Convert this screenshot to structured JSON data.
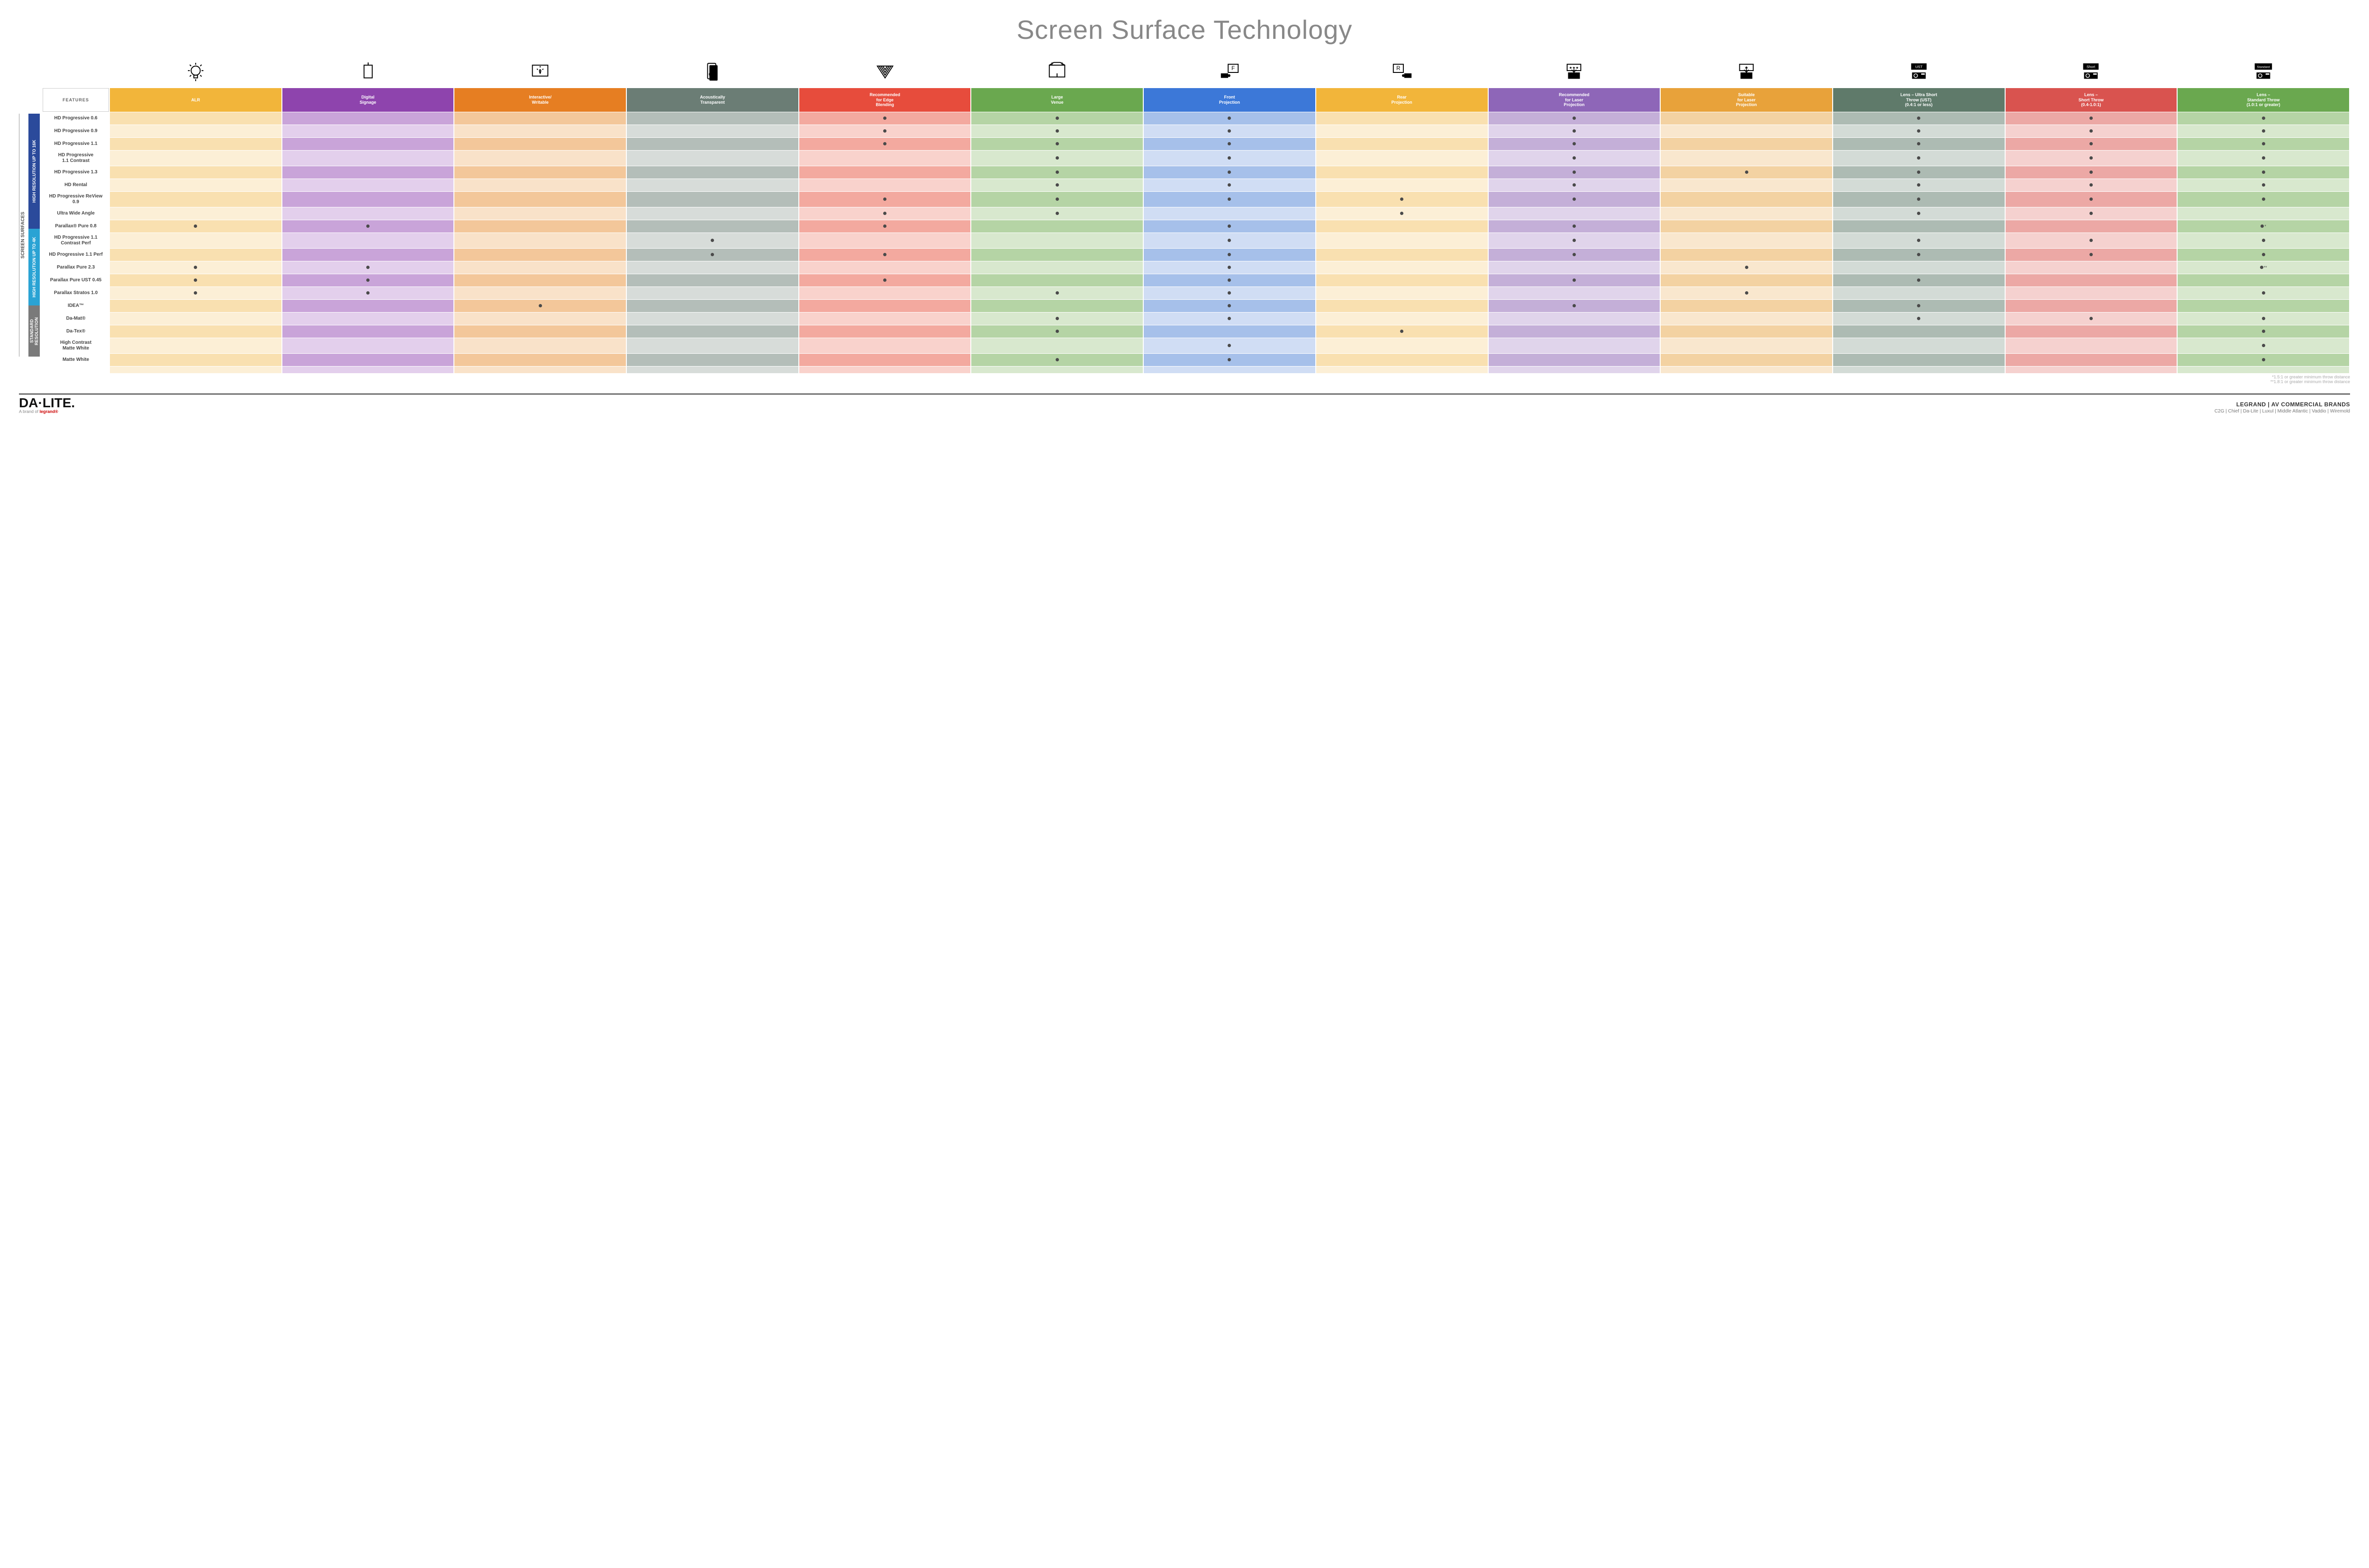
{
  "title": "Screen Surface Technology",
  "sideLabel": "SCREEN SURFACES",
  "featuresHeader": "FEATURES",
  "columns": [
    {
      "label": "ALR",
      "color": "#f2b53a",
      "light": "#f9e0b0",
      "lighter": "#fcefd6"
    },
    {
      "label": "Digital\nSignage",
      "color": "#8e44ad",
      "light": "#c9a4d9",
      "lighter": "#e3cfec"
    },
    {
      "label": "Interactive/\nWritable",
      "color": "#e67e22",
      "light": "#f3c79a",
      "lighter": "#f9e2c9"
    },
    {
      "label": "Acoustically\nTransparent",
      "color": "#6b7d75",
      "light": "#b4beb9",
      "lighter": "#d7dcd9"
    },
    {
      "label": "Recommended\nfor Edge\nBlending",
      "color": "#e74c3c",
      "light": "#f3a99f",
      "lighter": "#f9d2cc"
    },
    {
      "label": "Large\nVenue",
      "color": "#6aa84f",
      "light": "#b5d4a5",
      "lighter": "#d8e8ce"
    },
    {
      "label": "Front\nProjection",
      "color": "#3c78d8",
      "light": "#a6c0ea",
      "lighter": "#d0ddf4"
    },
    {
      "label": "Rear\nProjection",
      "color": "#f2b53a",
      "light": "#f9e0b0",
      "lighter": "#fcefd6"
    },
    {
      "label": "Recommended\nfor Laser\nProjection",
      "color": "#8e66b8",
      "light": "#c4afd8",
      "lighter": "#e0d4eb"
    },
    {
      "label": "Suitable\nfor Laser\nProjection",
      "color": "#e8a23a",
      "light": "#f3d2a2",
      "lighter": "#f9e7ce"
    },
    {
      "label": "Lens – Ultra Short\nThrow (UST)\n(0.4:1 or less)",
      "color": "#5f7a6a",
      "light": "#adbbb3",
      "lighter": "#d3dbd6"
    },
    {
      "label": "Lens –\nShort Throw\n(0.4-1.0:1)",
      "color": "#d9534f",
      "light": "#eca8a5",
      "lighter": "#f5d1cf"
    },
    {
      "label": "Lens –\nStandard Throw\n(1.0:1 or greater)",
      "color": "#6aa84f",
      "light": "#b5d4a5",
      "lighter": "#d8e8ce"
    }
  ],
  "groups": [
    {
      "label": "HIGH RESOLUTION UP TO 16K",
      "color": "#2b4a9b",
      "rowCount": 9
    },
    {
      "label": "HIGH RESOLUTION UP TO 4K",
      "color": "#2aa3d4",
      "rowCount": 6
    },
    {
      "label": "STANDARD\nRESOLUTION",
      "color": "#7a7a7a",
      "rowCount": 4
    }
  ],
  "rows": [
    {
      "label": "HD Progressive 0.6",
      "dots": [
        0,
        0,
        0,
        0,
        1,
        1,
        1,
        0,
        1,
        0,
        1,
        1,
        1
      ]
    },
    {
      "label": "HD Progressive 0.9",
      "dots": [
        0,
        0,
        0,
        0,
        1,
        1,
        1,
        0,
        1,
        0,
        1,
        1,
        1
      ]
    },
    {
      "label": "HD Progressive 1.1",
      "dots": [
        0,
        0,
        0,
        0,
        1,
        1,
        1,
        0,
        1,
        0,
        1,
        1,
        1
      ]
    },
    {
      "label": "HD Progressive\n1.1 Contrast",
      "dots": [
        0,
        0,
        0,
        0,
        0,
        1,
        1,
        0,
        1,
        0,
        1,
        1,
        1
      ]
    },
    {
      "label": "HD Progressive 1.3",
      "dots": [
        0,
        0,
        0,
        0,
        0,
        1,
        1,
        0,
        1,
        1,
        1,
        1,
        1
      ]
    },
    {
      "label": "HD Rental",
      "dots": [
        0,
        0,
        0,
        0,
        0,
        1,
        1,
        0,
        1,
        0,
        1,
        1,
        1
      ]
    },
    {
      "label": "HD Progressive ReView 0.9",
      "dots": [
        0,
        0,
        0,
        0,
        1,
        1,
        1,
        1,
        1,
        0,
        1,
        1,
        1
      ]
    },
    {
      "label": "Ultra Wide Angle",
      "dots": [
        0,
        0,
        0,
        0,
        1,
        1,
        0,
        1,
        0,
        0,
        1,
        1,
        0
      ]
    },
    {
      "label": "Parallax® Pure 0.8",
      "dots": [
        1,
        1,
        0,
        0,
        1,
        0,
        1,
        0,
        1,
        0,
        0,
        0,
        1
      ],
      "note": "*"
    },
    {
      "label": "HD Progressive 1.1\nContrast Perf",
      "dots": [
        0,
        0,
        0,
        1,
        0,
        0,
        1,
        0,
        1,
        0,
        1,
        1,
        1
      ]
    },
    {
      "label": "HD Progressive 1.1 Perf",
      "dots": [
        0,
        0,
        0,
        1,
        1,
        0,
        1,
        0,
        1,
        0,
        1,
        1,
        1
      ]
    },
    {
      "label": "Parallax Pure 2.3",
      "dots": [
        1,
        1,
        0,
        0,
        0,
        0,
        1,
        0,
        0,
        1,
        0,
        0,
        1
      ],
      "note": "**"
    },
    {
      "label": "Parallax Pure UST 0.45",
      "dots": [
        1,
        1,
        0,
        0,
        1,
        0,
        1,
        0,
        1,
        0,
        1,
        0,
        0
      ]
    },
    {
      "label": "Parallax Stratos 1.0",
      "dots": [
        1,
        1,
        0,
        0,
        0,
        1,
        1,
        0,
        0,
        1,
        0,
        0,
        1
      ]
    },
    {
      "label": "IDEA™",
      "dots": [
        0,
        0,
        1,
        0,
        0,
        0,
        1,
        0,
        1,
        0,
        1,
        0,
        0
      ]
    },
    {
      "label": "Da-Mat®",
      "dots": [
        0,
        0,
        0,
        0,
        0,
        1,
        1,
        0,
        0,
        0,
        1,
        1,
        1
      ]
    },
    {
      "label": "Da-Tex®",
      "dots": [
        0,
        0,
        0,
        0,
        0,
        1,
        0,
        1,
        0,
        0,
        0,
        0,
        1
      ]
    },
    {
      "label": "High Contrast\nMatte White",
      "dots": [
        0,
        0,
        0,
        0,
        0,
        0,
        1,
        0,
        0,
        0,
        0,
        0,
        1
      ]
    },
    {
      "label": "Matte White",
      "dots": [
        0,
        0,
        0,
        0,
        0,
        1,
        1,
        0,
        0,
        0,
        0,
        0,
        1
      ]
    }
  ],
  "footnotes": [
    "*1.5:1 or greater minimum throw distance",
    "**1.8:1 or greater minimum throw distance"
  ],
  "footer": {
    "logoMain": "DA·LITE.",
    "logoSub": "A brand of ",
    "logoSubBrand": "legrand®",
    "brandsTitle": "LEGRAND | AV COMMERCIAL BRANDS",
    "brandsList": "C2G  |  Chief  |  Da-Lite  |  Luxul  |  Middle Atlantic  |  Vaddio  |  Wiremold"
  },
  "icons": [
    "bulb",
    "signage",
    "touch",
    "speaker",
    "angle",
    "venue",
    "front",
    "rear",
    "laser-rec",
    "laser-suit",
    "ust",
    "short",
    "standard"
  ]
}
